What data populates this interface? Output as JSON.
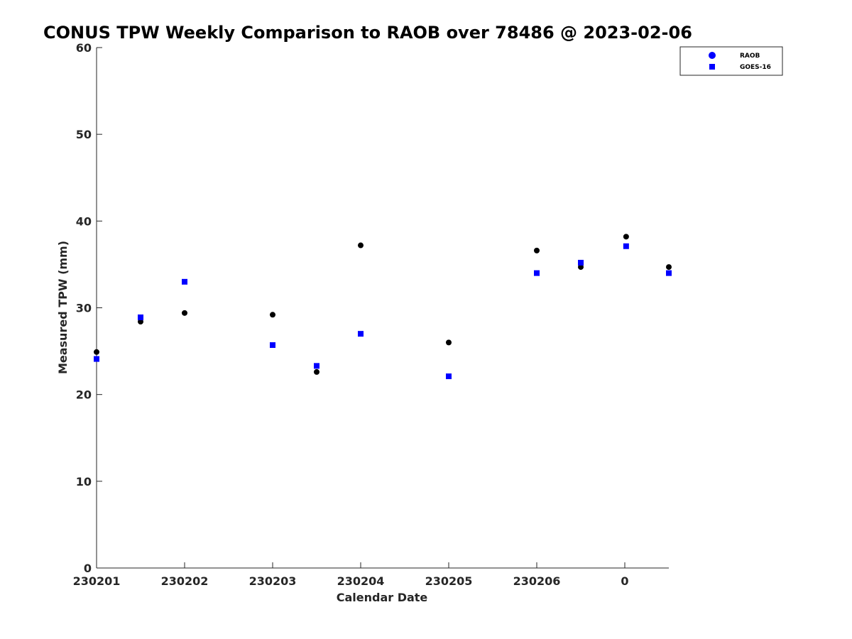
{
  "chart_data": {
    "type": "scatter",
    "title": "CONUS TPW Weekly Comparison to RAOB over 78486 @ 2023-02-06",
    "xlabel": "Calendar Date",
    "ylabel": "Measured TPW (mm)",
    "ylim": [
      0,
      60
    ],
    "yticks": [
      0,
      10,
      20,
      30,
      40,
      50,
      60
    ],
    "xlim": [
      0,
      13
    ],
    "xticks": [
      {
        "x": 0,
        "label": "230201"
      },
      {
        "x": 2,
        "label": "230202"
      },
      {
        "x": 4,
        "label": "230203"
      },
      {
        "x": 6,
        "label": "230204"
      },
      {
        "x": 8,
        "label": "230205"
      },
      {
        "x": 10,
        "label": "230206"
      },
      {
        "x": 12,
        "label": "0"
      }
    ],
    "legend_position": "top-right",
    "series": [
      {
        "name": "RAOB",
        "marker": "circle",
        "color": "#000000",
        "legend_color": "#0000ff",
        "points": [
          {
            "x": 0,
            "y": 24.9
          },
          {
            "x": 1,
            "y": 28.4
          },
          {
            "x": 2,
            "y": 29.4
          },
          {
            "x": 4,
            "y": 29.2
          },
          {
            "x": 5,
            "y": 22.6
          },
          {
            "x": 6,
            "y": 37.2
          },
          {
            "x": 8,
            "y": 26.0
          },
          {
            "x": 10,
            "y": 36.6
          },
          {
            "x": 11,
            "y": 34.7
          },
          {
            "x": 12.03,
            "y": 38.2
          },
          {
            "x": 13,
            "y": 34.7
          }
        ]
      },
      {
        "name": "GOES-16",
        "marker": "square",
        "color": "#0000ff",
        "legend_color": "#0000ff",
        "points": [
          {
            "x": 0,
            "y": 24.1
          },
          {
            "x": 1,
            "y": 28.9
          },
          {
            "x": 2,
            "y": 33.0
          },
          {
            "x": 4,
            "y": 25.7
          },
          {
            "x": 5,
            "y": 23.3
          },
          {
            "x": 6,
            "y": 27.0
          },
          {
            "x": 8,
            "y": 22.1
          },
          {
            "x": 10,
            "y": 34.0
          },
          {
            "x": 11,
            "y": 35.2
          },
          {
            "x": 12.03,
            "y": 37.1
          },
          {
            "x": 13,
            "y": 34.0
          }
        ]
      }
    ]
  }
}
